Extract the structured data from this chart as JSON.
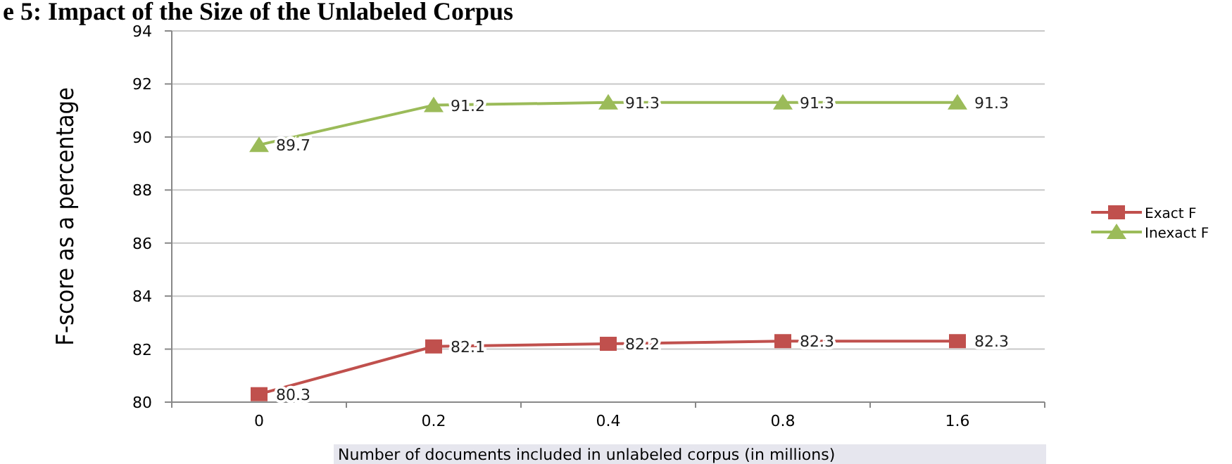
{
  "chart_data": {
    "type": "line",
    "title": "e 5: Impact of the Size of the Unlabeled Corpus",
    "xlabel": "Number of documents included in unlabeled corpus (in millions)",
    "ylabel": "F-score as a percentage",
    "categories": [
      "0",
      "0.2",
      "0.4",
      "0.8",
      "1.6"
    ],
    "series": [
      {
        "name": "Exact F",
        "color": "#c0504d",
        "marker": "square",
        "values": [
          80.3,
          82.1,
          82.2,
          82.3,
          82.3
        ]
      },
      {
        "name": "Inexact F",
        "color": "#9bbb59",
        "marker": "triangle",
        "values": [
          89.7,
          91.2,
          91.3,
          91.3,
          91.3
        ]
      }
    ],
    "ylim": [
      80,
      94
    ],
    "yticks": [
      80,
      82,
      84,
      86,
      88,
      90,
      92,
      94
    ],
    "grid": "y",
    "legend": "right",
    "data_labels": true,
    "line_style": "solid"
  }
}
